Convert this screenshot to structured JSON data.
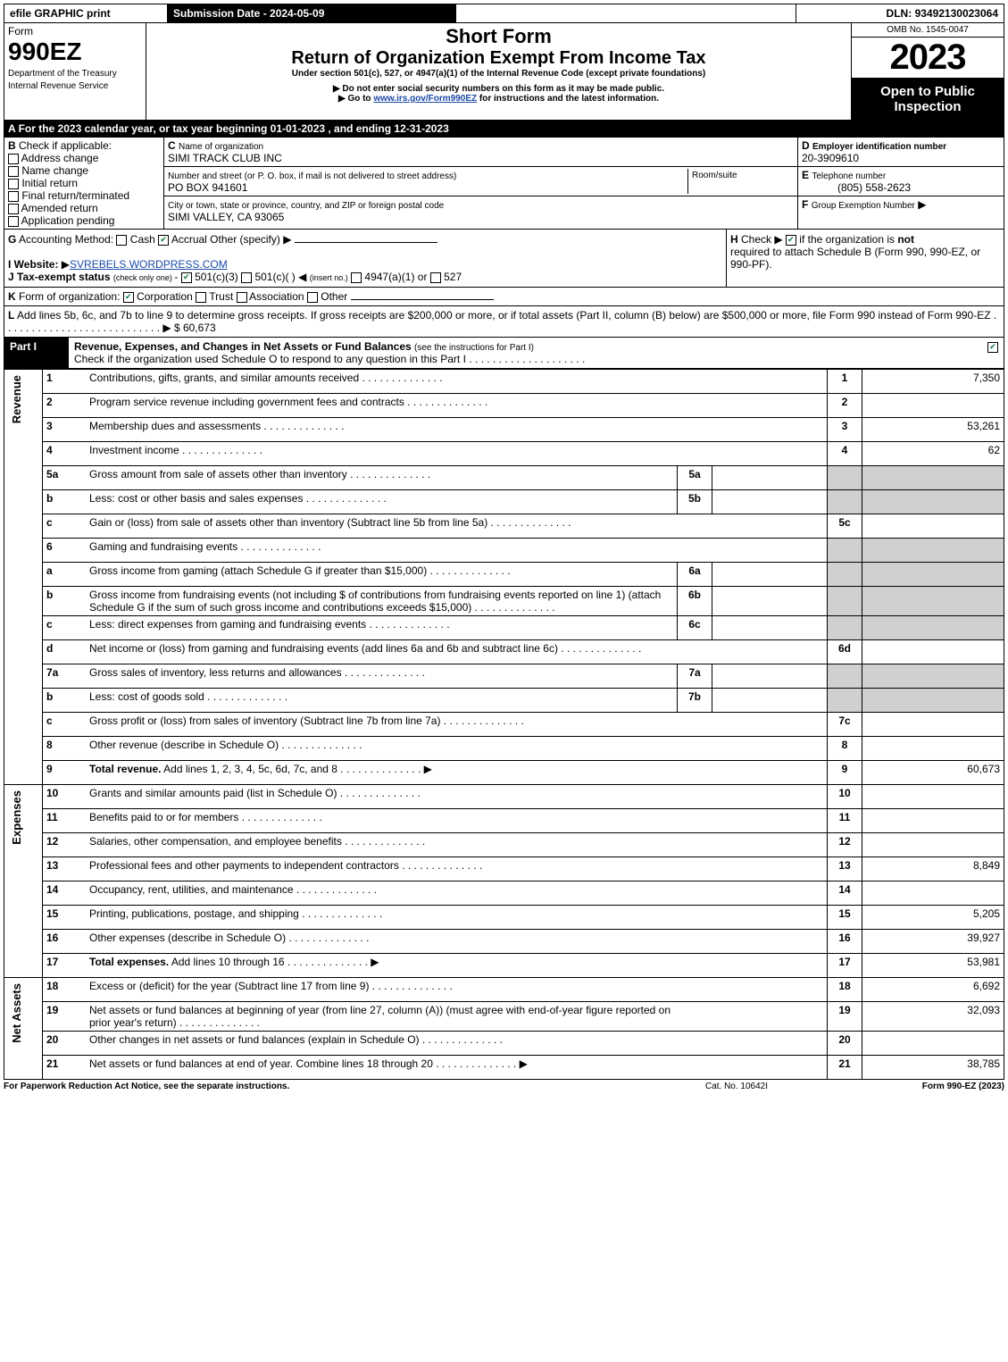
{
  "topbar": {
    "efile": "efile GRAPHIC print",
    "submission": "Submission Date - 2024-05-09",
    "dln_label": "DLN:",
    "dln": "93492130023064"
  },
  "header": {
    "form_word": "Form",
    "form_no": "990EZ",
    "dept1": "Department of the Treasury",
    "dept2": "Internal Revenue Service",
    "title": "Short Form",
    "subtitle": "Return of Organization Exempt From Income Tax",
    "under": "Under section 501(c), 527, or 4947(a)(1) of the Internal Revenue Code (except private foundations)",
    "warn": "Do not enter social security numbers on this form as it may be made public.",
    "goto_pre": "Go to ",
    "goto_link": "www.irs.gov/Form990EZ",
    "goto_post": " for instructions and the latest information.",
    "omb": "OMB No. 1545-0047",
    "year": "2023",
    "open": "Open to Public Inspection"
  },
  "A": {
    "text": "For the 2023 calendar year, or tax year beginning 01-01-2023 , and ending 12-31-2023"
  },
  "B": {
    "label": "Check if applicable:",
    "opts": [
      "Address change",
      "Name change",
      "Initial return",
      "Final return/terminated",
      "Amended return",
      "Application pending"
    ]
  },
  "C": {
    "name_label": "Name of organization",
    "name": "SIMI TRACK CLUB INC",
    "street_label": "Number and street (or P. O. box, if mail is not delivered to street address)",
    "street": "PO BOX 941601",
    "room_label": "Room/suite",
    "city_label": "City or town, state or province, country, and ZIP or foreign postal code",
    "city": "SIMI VALLEY, CA  93065"
  },
  "D": {
    "label": "Employer identification number",
    "val": "20-3909610"
  },
  "E": {
    "label": "Telephone number",
    "val": "(805) 558-2623"
  },
  "F": {
    "label": "Group Exemption Number",
    "arrow": "▶"
  },
  "G": {
    "label": "Accounting Method:",
    "cash": "Cash",
    "accrual": "Accrual",
    "other": "Other (specify)"
  },
  "H": {
    "text1": "Check",
    "text2": "if the organization is ",
    "not": "not",
    "text3": "required to attach Schedule B (Form 990, 990-EZ, or 990-PF)."
  },
  "I": {
    "label": "Website:",
    "val": "SVREBELS.WORDPRESS.COM"
  },
  "J": {
    "label": "Tax-exempt status",
    "hint": "(check only one) ",
    "a": "501(c)(3)",
    "b": "501(c)(  )",
    "ins": "(insert no.)",
    "c": "4947(a)(1) or",
    "d": "527"
  },
  "K": {
    "label": "Form of organization:",
    "corp": "Corporation",
    "trust": "Trust",
    "assoc": "Association",
    "other": "Other"
  },
  "L": {
    "text": "Add lines 5b, 6c, and 7b to line 9 to determine gross receipts. If gross receipts are $200,000 or more, or if total assets (Part II, column (B) below) are $500,000 or more, file Form 990 instead of Form 990-EZ",
    "val": "$ 60,673"
  },
  "part1": {
    "label": "Part I",
    "title": "Revenue, Expenses, and Changes in Net Assets or Fund Balances",
    "hint": "(see the instructions for Part I)",
    "check": "Check if the organization used Schedule O to respond to any question in this Part I"
  },
  "sections": {
    "revenue": "Revenue",
    "expenses": "Expenses",
    "net": "Net Assets"
  },
  "lines": [
    {
      "n": "1",
      "d": "Contributions, gifts, grants, and similar amounts received",
      "c": "1",
      "v": "7,350"
    },
    {
      "n": "2",
      "d": "Program service revenue including government fees and contracts",
      "c": "2",
      "v": ""
    },
    {
      "n": "3",
      "d": "Membership dues and assessments",
      "c": "3",
      "v": "53,261"
    },
    {
      "n": "4",
      "d": "Investment income",
      "c": "4",
      "v": "62"
    },
    {
      "n": "5a",
      "d": "Gross amount from sale of assets other than inventory",
      "sub": "5a"
    },
    {
      "n": "b",
      "d": "Less: cost or other basis and sales expenses",
      "sub": "5b"
    },
    {
      "n": "c",
      "d": "Gain or (loss) from sale of assets other than inventory (Subtract line 5b from line 5a)",
      "c": "5c",
      "v": ""
    },
    {
      "n": "6",
      "d": "Gaming and fundraising events"
    },
    {
      "n": "a",
      "d": "Gross income from gaming (attach Schedule G if greater than $15,000)",
      "sub": "6a"
    },
    {
      "n": "b",
      "d": "Gross income from fundraising events (not including $                             of contributions from fundraising events reported on line 1) (attach Schedule G if the sum of such gross income and contributions exceeds $15,000)",
      "sub": "6b"
    },
    {
      "n": "c",
      "d": "Less: direct expenses from gaming and fundraising events",
      "sub": "6c"
    },
    {
      "n": "d",
      "d": "Net income or (loss) from gaming and fundraising events (add lines 6a and 6b and subtract line 6c)",
      "c": "6d",
      "v": ""
    },
    {
      "n": "7a",
      "d": "Gross sales of inventory, less returns and allowances",
      "sub": "7a"
    },
    {
      "n": "b",
      "d": "Less: cost of goods sold",
      "sub": "7b"
    },
    {
      "n": "c",
      "d": "Gross profit or (loss) from sales of inventory (Subtract line 7b from line 7a)",
      "c": "7c",
      "v": ""
    },
    {
      "n": "8",
      "d": "Other revenue (describe in Schedule O)",
      "c": "8",
      "v": ""
    },
    {
      "n": "9",
      "d": "Total revenue. Add lines 1, 2, 3, 4, 5c, 6d, 7c, and 8",
      "c": "9",
      "v": "60,673",
      "bold": true,
      "arrow": true
    }
  ],
  "exp": [
    {
      "n": "10",
      "d": "Grants and similar amounts paid (list in Schedule O)",
      "c": "10",
      "v": ""
    },
    {
      "n": "11",
      "d": "Benefits paid to or for members",
      "c": "11",
      "v": ""
    },
    {
      "n": "12",
      "d": "Salaries, other compensation, and employee benefits",
      "c": "12",
      "v": ""
    },
    {
      "n": "13",
      "d": "Professional fees and other payments to independent contractors",
      "c": "13",
      "v": "8,849"
    },
    {
      "n": "14",
      "d": "Occupancy, rent, utilities, and maintenance",
      "c": "14",
      "v": ""
    },
    {
      "n": "15",
      "d": "Printing, publications, postage, and shipping",
      "c": "15",
      "v": "5,205"
    },
    {
      "n": "16",
      "d": "Other expenses (describe in Schedule O)",
      "c": "16",
      "v": "39,927"
    },
    {
      "n": "17",
      "d": "Total expenses. Add lines 10 through 16",
      "c": "17",
      "v": "53,981",
      "bold": true,
      "arrow": true
    }
  ],
  "net": [
    {
      "n": "18",
      "d": "Excess or (deficit) for the year (Subtract line 17 from line 9)",
      "c": "18",
      "v": "6,692"
    },
    {
      "n": "19",
      "d": "Net assets or fund balances at beginning of year (from line 27, column (A)) (must agree with end-of-year figure reported on prior year's return)",
      "c": "19",
      "v": "32,093"
    },
    {
      "n": "20",
      "d": "Other changes in net assets or fund balances (explain in Schedule O)",
      "c": "20",
      "v": ""
    },
    {
      "n": "21",
      "d": "Net assets or fund balances at end of year. Combine lines 18 through 20",
      "c": "21",
      "v": "38,785",
      "arrow": true
    }
  ],
  "footer": {
    "pra": "For Paperwork Reduction Act Notice, see the separate instructions.",
    "cat": "Cat. No. 10642I",
    "form": "Form 990-EZ (2023)"
  }
}
